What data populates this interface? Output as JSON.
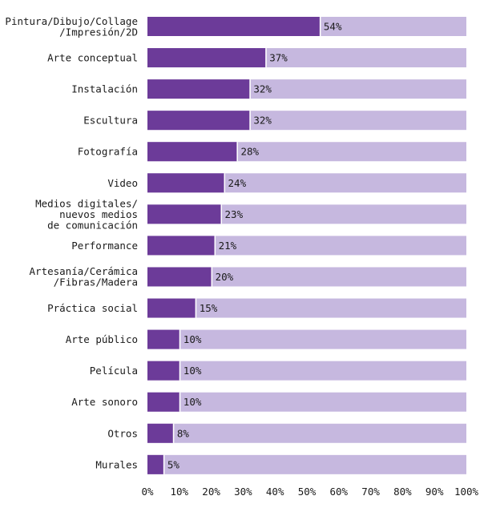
{
  "chart_data": {
    "type": "bar",
    "orientation": "horizontal",
    "stacked_to_100": true,
    "categories": [
      [
        "Pintura/Dibujo/Collage",
        "/Impresión/2D"
      ],
      [
        "Arte conceptual"
      ],
      [
        "Instalación"
      ],
      [
        "Escultura"
      ],
      [
        "Fotografía"
      ],
      [
        "Video"
      ],
      [
        "Medios digitales/",
        "nuevos medios",
        "de comunicación"
      ],
      [
        "Performance"
      ],
      [
        "Artesanía/Cerámica",
        "/Fibras/Madera"
      ],
      [
        "Práctica social"
      ],
      [
        "Arte público"
      ],
      [
        "Película"
      ],
      [
        "Arte sonoro"
      ],
      [
        "Otros"
      ],
      [
        "Murales"
      ]
    ],
    "values": [
      54,
      37,
      32,
      32,
      28,
      24,
      23,
      21,
      20,
      15,
      10,
      10,
      10,
      8,
      5
    ],
    "value_labels": [
      "54%",
      "37%",
      "32%",
      "32%",
      "28%",
      "24%",
      "23%",
      "21%",
      "20%",
      "15%",
      "10%",
      "10%",
      "10%",
      "8%",
      "5%"
    ],
    "xlim": [
      0,
      100
    ],
    "x_ticks": [
      "0%",
      "10%",
      "20%",
      "30%",
      "40%",
      "50%",
      "60%",
      "70%",
      "80%",
      "90%",
      "100%"
    ],
    "title": "",
    "xlabel": "",
    "ylabel": "",
    "grid": false,
    "legend": "none",
    "colors": {
      "bar": "#6c3b99",
      "track": "#c6b8df",
      "divider": "#ffffff"
    }
  }
}
